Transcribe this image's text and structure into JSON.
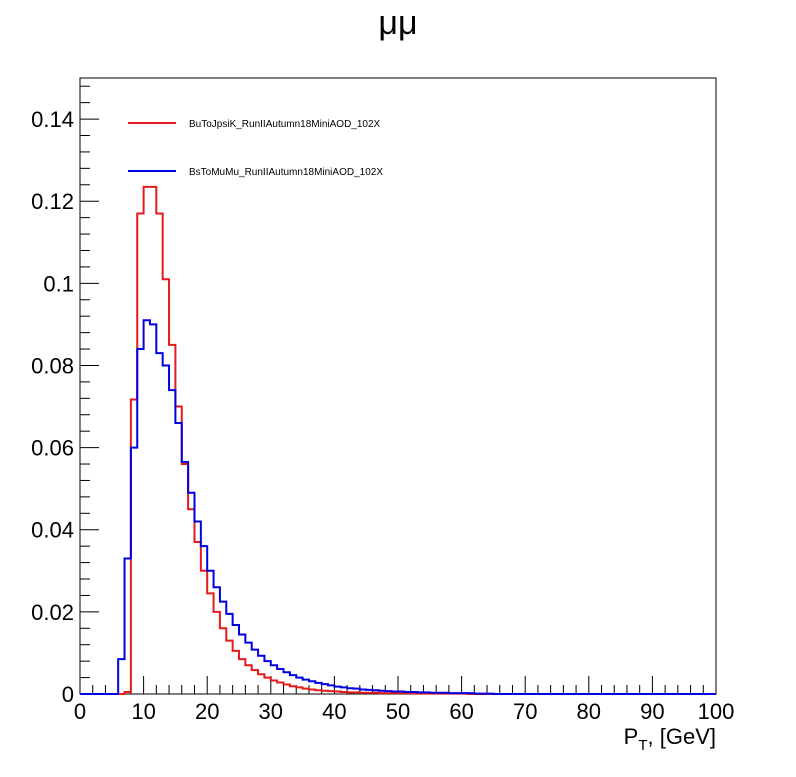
{
  "chart_data": {
    "type": "line",
    "title": "μμ",
    "xlabel_main": "P",
    "xlabel_sub": "T",
    "xlabel_rest": ", [GeV]",
    "ylabel": "",
    "xlim": [
      0,
      100
    ],
    "ylim": [
      0,
      0.15
    ],
    "grid": false,
    "legend_placement": "top-left",
    "x_ticks": [
      0,
      10,
      20,
      30,
      40,
      50,
      60,
      70,
      80,
      90,
      100
    ],
    "y_ticks": [
      0,
      0.02,
      0.04,
      0.06,
      0.08,
      0.1,
      0.12,
      0.14
    ],
    "y_tick_labels": [
      "0",
      "0.02",
      "0.04",
      "0.06",
      "0.08",
      "0.1",
      "0.12",
      "0.14"
    ],
    "bin_width": 1,
    "bin_start": 0,
    "series": [
      {
        "name": "BuToJpsiK_RunIIAutumn18MiniAOD_102X",
        "color": "#e41a1c",
        "values": [
          0,
          0,
          0,
          0,
          0,
          0,
          0,
          0.0005,
          0.0717,
          0.117,
          0.1235,
          0.1235,
          0.117,
          0.101,
          0.085,
          0.07,
          0.056,
          0.045,
          0.037,
          0.03,
          0.0245,
          0.02,
          0.016,
          0.013,
          0.0105,
          0.0085,
          0.007,
          0.0058,
          0.0048,
          0.004,
          0.0033,
          0.0028,
          0.0023,
          0.0019,
          0.0016,
          0.0013,
          0.0011,
          0.0009,
          0.0008,
          0.0007,
          0.0006,
          0.0005,
          0.0004,
          0.0004,
          0.0003,
          0.0003,
          0.0003,
          0.0002,
          0.0002,
          0.0002,
          0.0002,
          0.0002,
          0.0001,
          0.0001,
          0.0001,
          0.0001,
          0.0001,
          0.0001,
          0.0001,
          0.0001,
          0.0001,
          0,
          0,
          0,
          0,
          0,
          0,
          0,
          0,
          0,
          0,
          0,
          0,
          0,
          0,
          0,
          0,
          0,
          0,
          0,
          0,
          0,
          0,
          0,
          0,
          0,
          0,
          0,
          0,
          0,
          0,
          0,
          0,
          0,
          0,
          0,
          0,
          0,
          0,
          0
        ]
      },
      {
        "name": "BsToMuMu_RunIIAutumn18MiniAOD_102X",
        "color": "#0000e0",
        "values": [
          0,
          0,
          0,
          0,
          0,
          0,
          0.0085,
          0.033,
          0.06,
          0.084,
          0.091,
          0.09,
          0.083,
          0.08,
          0.074,
          0.066,
          0.0565,
          0.049,
          0.042,
          0.036,
          0.03,
          0.026,
          0.0225,
          0.0195,
          0.0168,
          0.0145,
          0.0125,
          0.0108,
          0.0093,
          0.008,
          0.007,
          0.0061,
          0.0053,
          0.0046,
          0.004,
          0.0035,
          0.0031,
          0.0027,
          0.0024,
          0.0021,
          0.0018,
          0.0016,
          0.0014,
          0.0013,
          0.0011,
          0.001,
          0.0009,
          0.0008,
          0.0007,
          0.0006,
          0.0006,
          0.0005,
          0.0005,
          0.0004,
          0.0004,
          0.0003,
          0.0003,
          0.0003,
          0.0002,
          0.0002,
          0.0002,
          0.0002,
          0.0001,
          0.0001,
          0.0001,
          0,
          0,
          0,
          0,
          0,
          0,
          0,
          0,
          0,
          0,
          0,
          0,
          0,
          0,
          0,
          0,
          0,
          0,
          0,
          0,
          0,
          0,
          0,
          0,
          0,
          0,
          0,
          0,
          0,
          0,
          0,
          0,
          0,
          0,
          0
        ]
      }
    ]
  }
}
